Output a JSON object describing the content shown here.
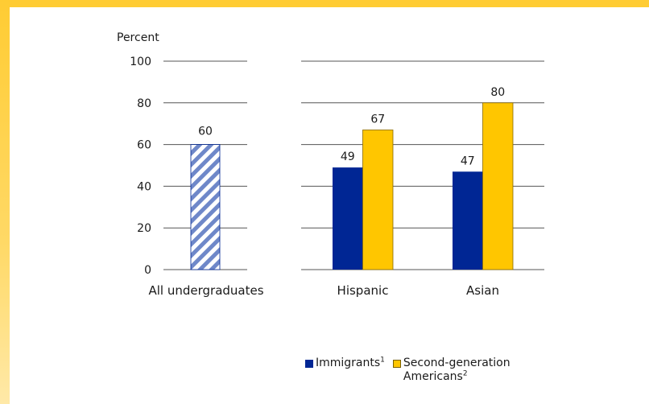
{
  "colors": {
    "border": "#ffcc33",
    "immigrants": "#002694",
    "second_generation": "#ffc600",
    "hatch": "#6f88c9",
    "gridline": "#555555"
  },
  "legend": {
    "immigrants": {
      "label": "Immigrants",
      "sup": "1"
    },
    "second_generation": {
      "label_line1": "Second-generation",
      "label_line2": "Americans",
      "sup": "2"
    }
  },
  "chart_data": {
    "type": "bar",
    "ylabel": "Percent",
    "ylim": [
      0,
      100
    ],
    "yticks": [
      0,
      20,
      40,
      60,
      80,
      100
    ],
    "grid": true,
    "legend_position": "bottom-right",
    "overall": {
      "category": "All undergraduates",
      "value": 60
    },
    "categories": [
      "Hispanic",
      "Asian"
    ],
    "series": [
      {
        "name": "Immigrants¹",
        "values": [
          49,
          47
        ]
      },
      {
        "name": "Second-generation Americans²",
        "values": [
          67,
          80
        ]
      }
    ]
  }
}
